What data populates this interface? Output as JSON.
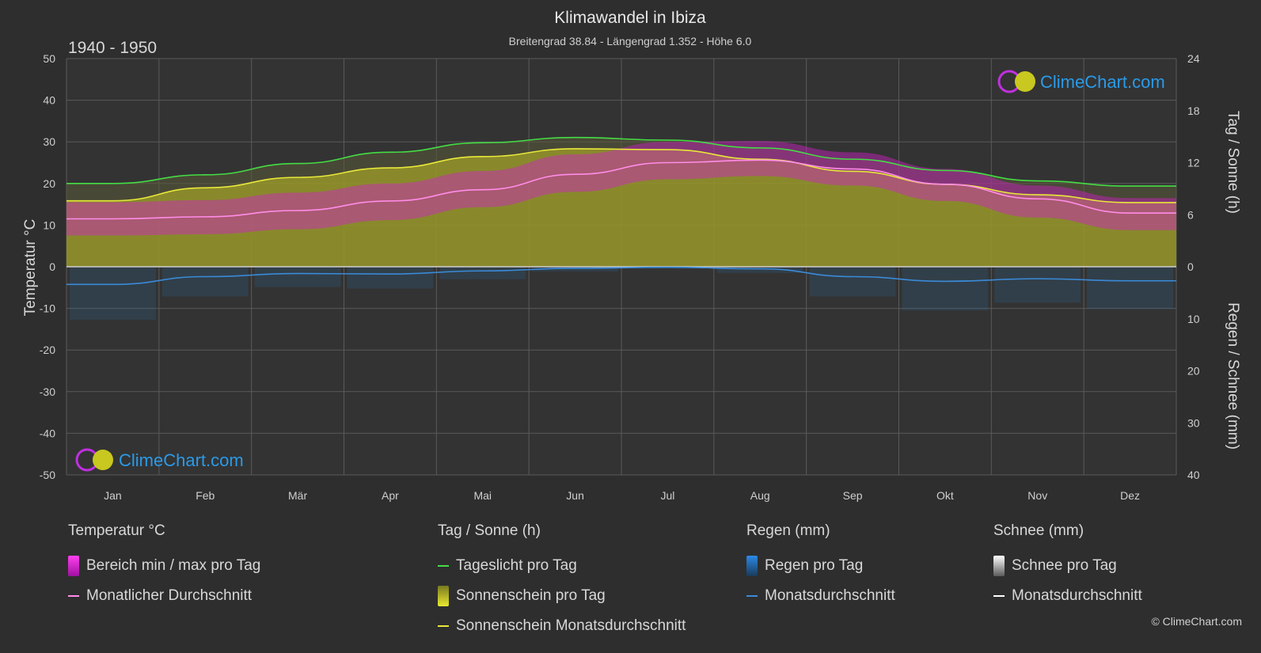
{
  "title": "Klimawandel in Ibiza",
  "subtitle": "Breitengrad 38.84 - Längengrad 1.352 - Höhe 6.0",
  "period": "1940 - 1950",
  "brand": "ClimeChart.com",
  "copyright": "© ClimeChart.com",
  "colors": {
    "background": "#2e2e2e",
    "grid": "#5a5a5a",
    "daylight": "#44dd44",
    "sunshine_fill": "#9a9a2a",
    "sunshine_line": "#e8e83a",
    "temp_range": "#d020c8",
    "temp_avg": "#ff8ce8",
    "rain": "#2a7ab8",
    "rain_avg": "#3a8ad8",
    "snow_avg": "#ffffff",
    "brand_text": "#2a9ae8"
  },
  "chart_data": {
    "type": "line",
    "categories": [
      "Jan",
      "Feb",
      "Mär",
      "Apr",
      "Mai",
      "Jun",
      "Jul",
      "Aug",
      "Sep",
      "Okt",
      "Nov",
      "Dez"
    ],
    "axes": {
      "left": {
        "label": "Temperatur °C",
        "range": [
          -50,
          50
        ],
        "ticks": [
          50,
          40,
          30,
          20,
          10,
          0,
          -10,
          -20,
          -30,
          -40,
          -50
        ]
      },
      "right_top": {
        "label": "Tag / Sonne (h)",
        "range": [
          0,
          24
        ],
        "ticks": [
          24,
          18,
          12,
          6,
          0
        ]
      },
      "right_bottom": {
        "label": "Regen / Schnee (mm)",
        "range": [
          0,
          40
        ],
        "ticks": [
          10,
          20,
          30,
          40
        ]
      }
    },
    "series": [
      {
        "name": "Tageslicht pro Tag",
        "unit": "h",
        "values": [
          9.6,
          10.6,
          11.9,
          13.2,
          14.3,
          14.9,
          14.6,
          13.7,
          12.4,
          11.1,
          9.9,
          9.3
        ]
      },
      {
        "name": "Sonnenschein Monatsdurchschnitt",
        "unit": "h",
        "values": [
          7.6,
          9.1,
          10.3,
          11.4,
          12.7,
          13.6,
          13.5,
          12.4,
          11.0,
          9.5,
          8.3,
          7.4
        ]
      },
      {
        "name": "Monatlicher Durchschnitt",
        "unit": "°C",
        "values": [
          11.5,
          12.0,
          13.5,
          15.8,
          18.5,
          22.2,
          25.0,
          25.6,
          23.5,
          19.8,
          16.3,
          12.9
        ]
      },
      {
        "name": "Temperatur min",
        "unit": "°C",
        "values": [
          7.5,
          7.8,
          9.0,
          11.2,
          14.3,
          18.0,
          21.0,
          21.8,
          19.5,
          15.8,
          11.8,
          8.8
        ]
      },
      {
        "name": "Temperatur max",
        "unit": "°C",
        "values": [
          15.5,
          16.0,
          17.8,
          20.0,
          23.0,
          27.0,
          30.0,
          30.2,
          27.5,
          23.5,
          19.5,
          16.5
        ]
      },
      {
        "name": "Regen Monatsdurchschnitt",
        "unit": "mm",
        "values": [
          3.4,
          1.9,
          1.3,
          1.4,
          0.8,
          0.3,
          0.1,
          0.4,
          1.9,
          2.8,
          2.3,
          2.7
        ]
      },
      {
        "name": "Schnee Monatsdurchschnitt",
        "unit": "mm",
        "values": [
          0,
          0,
          0,
          0,
          0,
          0,
          0,
          0,
          0,
          0,
          0,
          0
        ]
      }
    ]
  },
  "legend": {
    "temp": {
      "header": "Temperatur °C",
      "items": [
        "Bereich min / max pro Tag",
        "Monatlicher Durchschnitt"
      ]
    },
    "sun": {
      "header": "Tag / Sonne (h)",
      "items": [
        "Tageslicht pro Tag",
        "Sonnenschein pro Tag",
        "Sonnenschein Monatsdurchschnitt"
      ]
    },
    "rain": {
      "header": "Regen (mm)",
      "items": [
        "Regen pro Tag",
        "Monatsdurchschnitt"
      ]
    },
    "snow": {
      "header": "Schnee (mm)",
      "items": [
        "Schnee pro Tag",
        "Monatsdurchschnitt"
      ]
    }
  }
}
